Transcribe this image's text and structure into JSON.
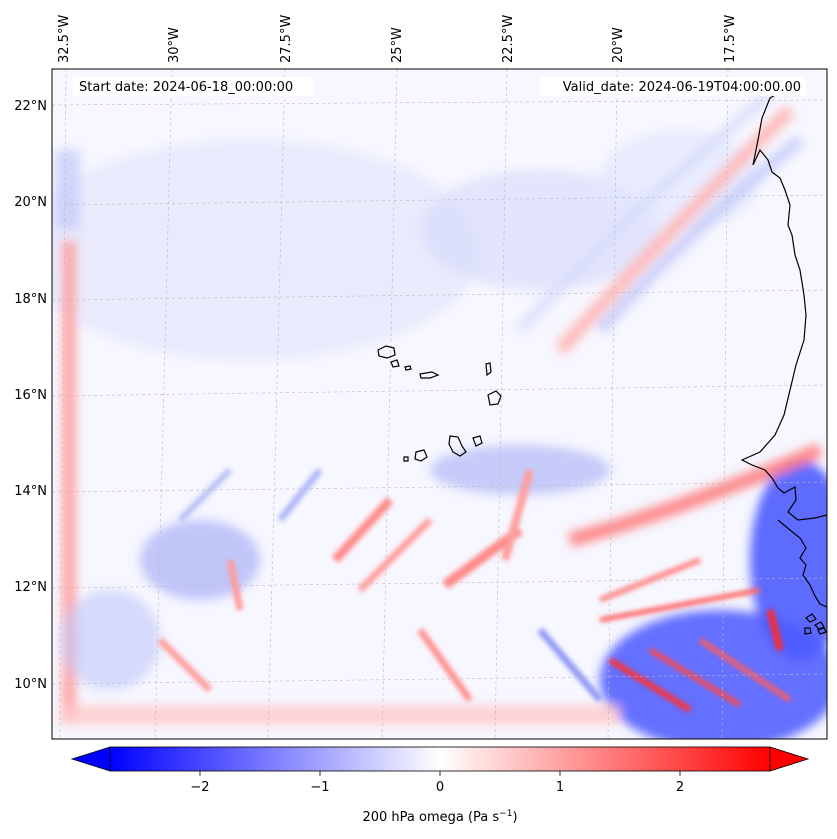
{
  "map": {
    "start_date_text": "Start date: 2024-06-18_00:00:00",
    "valid_date_text": "Valid_date: 2024-06-19T04:00:00.00",
    "lon_labels": [
      "32.5°W",
      "30°W",
      "27.5°W",
      "25°W",
      "22.5°W",
      "20°W",
      "17.5°W"
    ],
    "lat_labels": [
      "22°N",
      "20°N",
      "18°N",
      "16°N",
      "14°N",
      "12°N",
      "10°N"
    ],
    "field": "200 hPa omega",
    "colors": {
      "negative": "#0000ff",
      "zero": "#ffffff",
      "positive": "#ff0000",
      "coast": "#000000"
    }
  },
  "colorbar": {
    "label_text": "200 hPa omega (Pa s",
    "label_unit_exp": "−1",
    "label_close": ")",
    "ticks": [
      "−2",
      "−1",
      "0",
      "1",
      "2"
    ],
    "range": [
      -2.75,
      2.75
    ]
  }
}
